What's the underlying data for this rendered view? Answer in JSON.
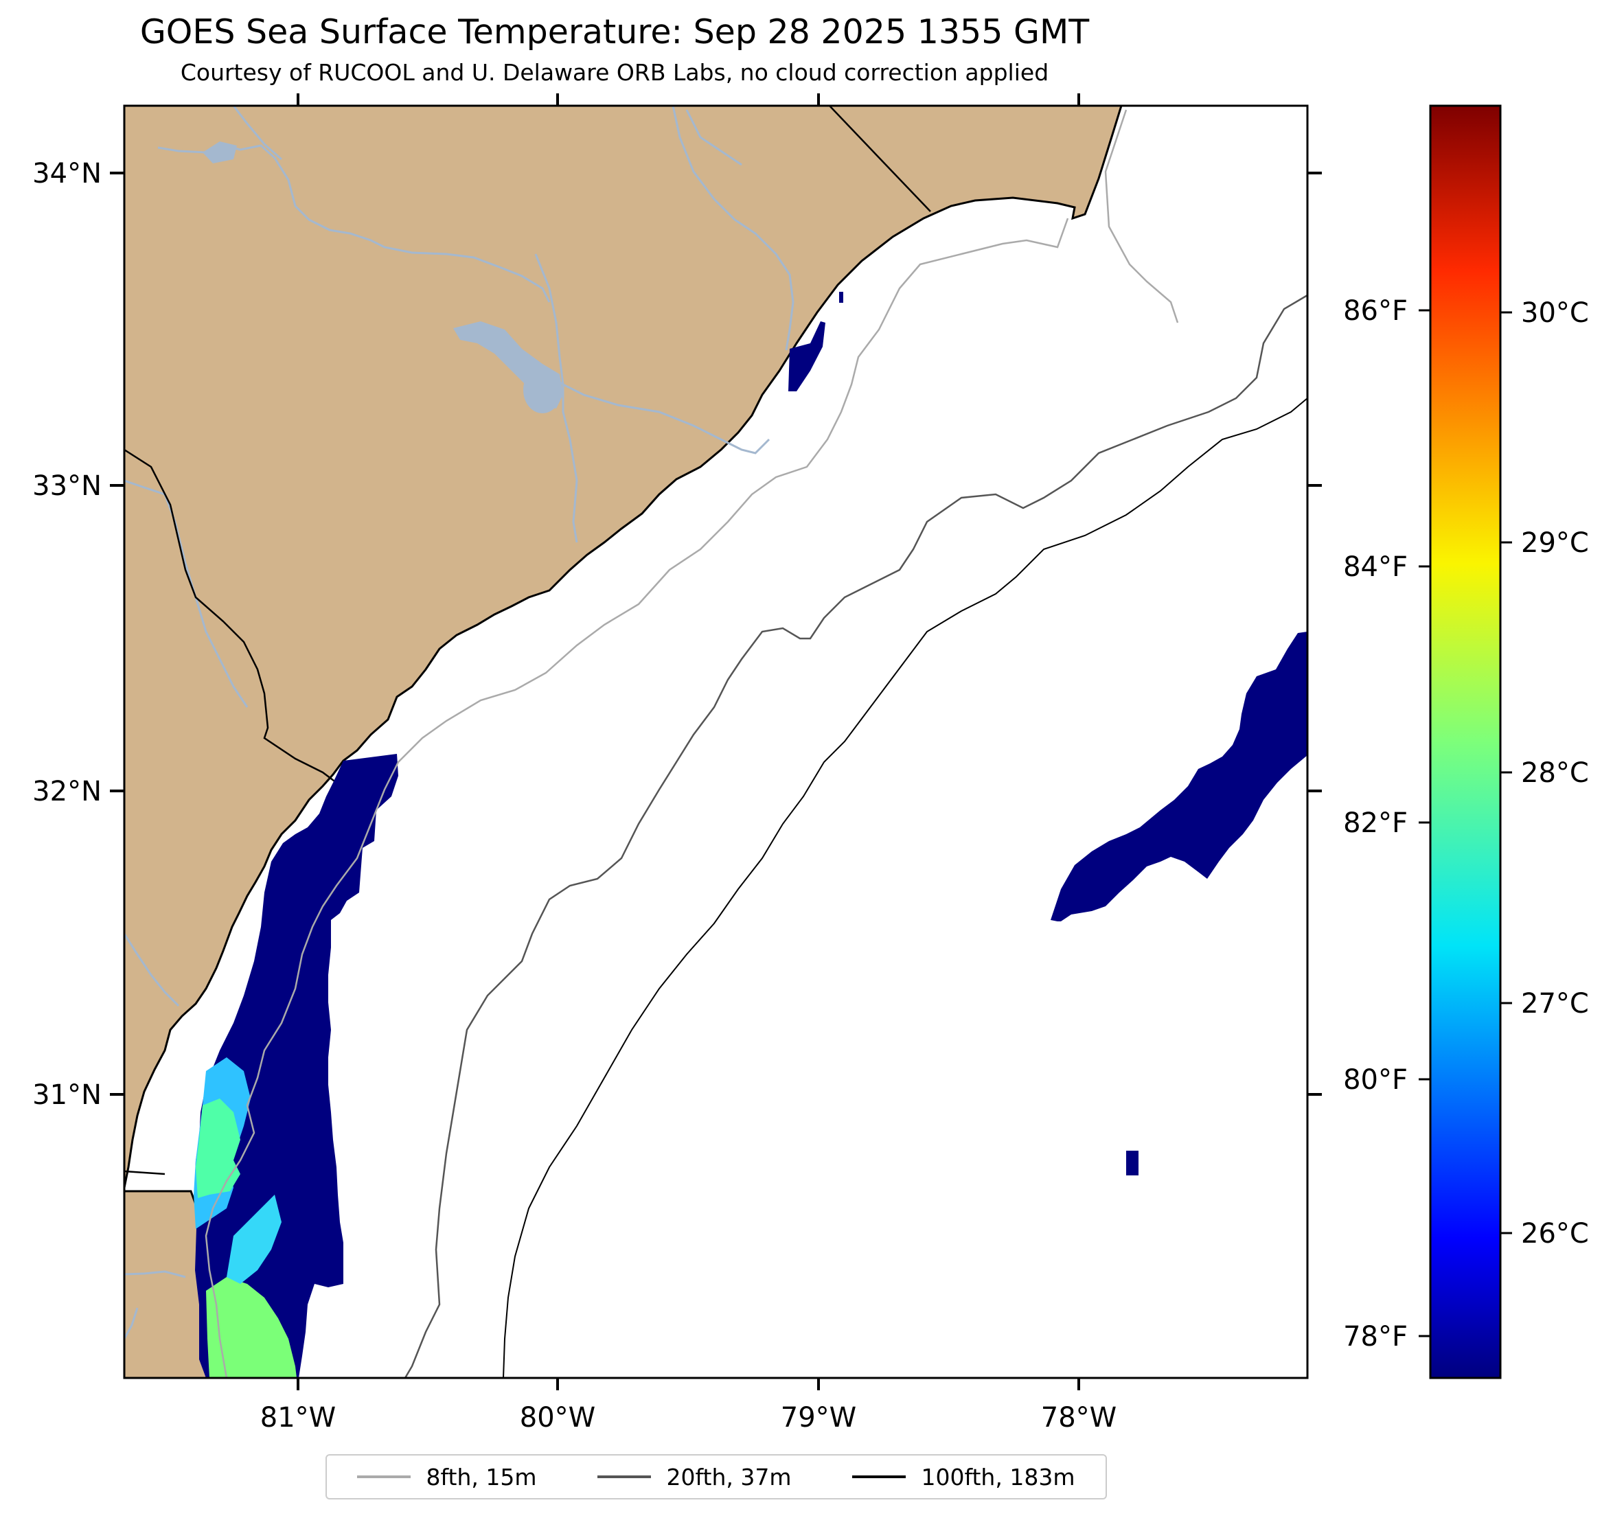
{
  "title": "GOES Sea Surface Temperature: Sep 28 2025 1355 GMT",
  "subtitle": "Courtesy of RUCOOL and U. Delaware ORB Labs, no cloud correction applied",
  "lat_labels": [
    "34°N",
    "33°N",
    "32°N",
    "31°N"
  ],
  "lon_labels": [
    "81°W",
    "80°W",
    "79°W",
    "78°W"
  ],
  "colorbar": {
    "fahrenheit_labels": [
      "86°F",
      "84°F",
      "82°F",
      "80°F",
      "78°F"
    ],
    "celsius_labels": [
      "30°C",
      "29°C",
      "28°C",
      "27°C",
      "26°C"
    ],
    "colormap": "jet"
  },
  "legend": [
    {
      "label": "8fth, 15m",
      "color": "#aaaaaa"
    },
    {
      "label": "20fth, 37m",
      "color": "#555555"
    },
    {
      "label": "100fth, 183m",
      "color": "#000000"
    }
  ],
  "colors": {
    "land": "#d2b48c",
    "rivers": "#a4b8cf",
    "sst_cold": "#00007f"
  }
}
